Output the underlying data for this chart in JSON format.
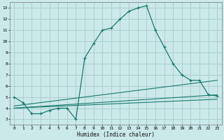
{
  "xlabel": "Humidex (Indice chaleur)",
  "xlim": [
    -0.5,
    23.5
  ],
  "ylim": [
    2.5,
    13.5
  ],
  "xticks": [
    0,
    1,
    2,
    3,
    4,
    5,
    6,
    7,
    8,
    9,
    10,
    11,
    12,
    13,
    14,
    15,
    16,
    17,
    18,
    19,
    20,
    21,
    22,
    23
  ],
  "yticks": [
    3,
    4,
    5,
    6,
    7,
    8,
    9,
    10,
    11,
    12,
    13
  ],
  "bg_color": "#cce9e9",
  "grid_color": "#aacfcf",
  "line_color": "#1a7a6e",
  "series": [
    {
      "x": [
        0,
        1,
        2,
        3,
        4,
        5,
        6,
        7,
        8,
        9,
        10,
        11,
        12,
        13,
        14,
        15,
        16,
        17,
        18,
        19,
        20,
        21,
        22,
        23
      ],
      "y": [
        5.0,
        4.5,
        3.5,
        3.5,
        3.8,
        4.0,
        4.0,
        3.0,
        8.5,
        9.8,
        11.0,
        11.2,
        12.0,
        12.7,
        13.0,
        13.2,
        11.0,
        9.5,
        8.0,
        7.0,
        6.5,
        6.5,
        5.2,
        5.1
      ],
      "marker": true
    },
    {
      "x": [
        0,
        23
      ],
      "y": [
        4.2,
        6.5
      ],
      "marker": false
    },
    {
      "x": [
        0,
        23
      ],
      "y": [
        4.0,
        5.2
      ],
      "marker": false
    },
    {
      "x": [
        0,
        23
      ],
      "y": [
        4.0,
        4.8
      ],
      "marker": false
    }
  ]
}
